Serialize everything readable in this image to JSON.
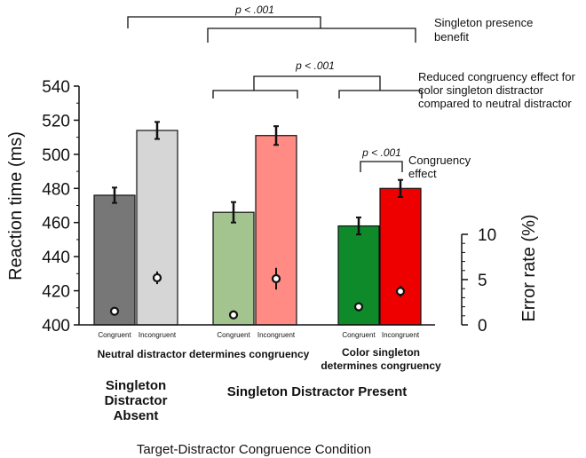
{
  "chart_data": {
    "type": "bar",
    "xlabel": "Target-Distractor Congruence Condition",
    "ylabel": "Reaction time (ms)",
    "y2label": "Error rate (%)",
    "ylim": [
      400,
      540
    ],
    "yticks": [
      400,
      420,
      440,
      460,
      480,
      500,
      520,
      540
    ],
    "y2lim": [
      0,
      10
    ],
    "y2ticks": [
      0,
      5,
      10
    ],
    "bars": [
      {
        "label": "Congruent",
        "rt": 476,
        "rt_err": 4.5,
        "er": 1.5,
        "er_err": 0.4,
        "color": "#777777"
      },
      {
        "label": "Incongruent",
        "rt": 514,
        "rt_err": 5,
        "er": 5.2,
        "er_err": 0.7,
        "color": "#d6d6d6"
      },
      {
        "label": "Congruent",
        "rt": 466,
        "rt_err": 6,
        "er": 1.1,
        "er_err": 0.4,
        "color": "#a3c48e"
      },
      {
        "label": "Incongruent",
        "rt": 511,
        "rt_err": 5.5,
        "er": 5.1,
        "er_err": 1.2,
        "color": "#ff8b84"
      },
      {
        "label": "Congruent",
        "rt": 458,
        "rt_err": 5,
        "er": 2.0,
        "er_err": 0.5,
        "color": "#0f8a2a"
      },
      {
        "label": "Incongruent",
        "rt": 480,
        "rt_err": 5,
        "er": 3.7,
        "er_err": 0.6,
        "color": "#ee0000"
      }
    ],
    "group_labels": {
      "neutral": "Neutral distractor determines congruency",
      "color_line1": "Color singleton",
      "color_line2": "determines congruency",
      "absent_line1": "Singleton",
      "absent_line2": "Distractor",
      "absent_line3": "Absent",
      "present": "Singleton Distractor Present"
    },
    "annotations": {
      "p_top": "p < .001",
      "p_mid": "p < .001",
      "p_low": "p < .001",
      "presence_line1": "Singleton presence",
      "presence_line2": "benefit",
      "reduced_line1": "Reduced congruency effect for",
      "reduced_line2": "color singleton distractor",
      "reduced_line3": "compared to neutral distractor",
      "cong_line1": "Congruency",
      "cong_line2": "effect"
    }
  }
}
